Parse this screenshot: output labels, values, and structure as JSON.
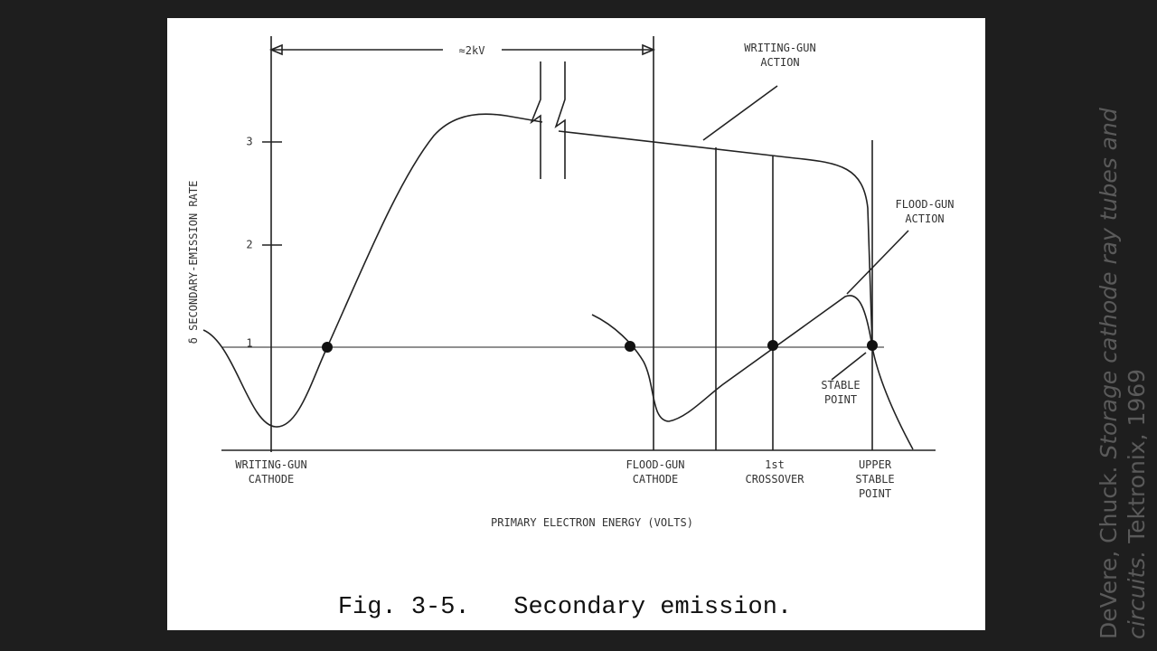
{
  "figure": {
    "y_axis_label": "δ SECONDARY-EMISSION RATE",
    "x_axis_label": "PRIMARY ELECTRON ENERGY (VOLTS)",
    "y_ticks": [
      1,
      2,
      3
    ],
    "span_label": "≈2kV",
    "writing_gun_action": [
      "WRITING-GUN",
      "ACTION"
    ],
    "flood_gun_action": [
      "FLOOD-GUN",
      "ACTION"
    ],
    "stable_point": [
      "STABLE",
      "POINT"
    ],
    "x_labels": {
      "writing_gun_cathode": [
        "WRITING-GUN",
        "CATHODE"
      ],
      "flood_gun_cathode": [
        "FLOOD-GUN",
        "CATHODE"
      ],
      "first_crossover": [
        "1st",
        "CROSSOVER"
      ],
      "upper_stable_point": [
        "UPPER",
        "STABLE",
        "POINT"
      ]
    },
    "caption": "Fig. 3-5.   Secondary emission."
  },
  "citation": {
    "author": "DeVere, Chuck.",
    "title_line_1": "Storage cathode ray tubes and",
    "title_line_2": "circuits.",
    "publisher": "Tektronix, 1969"
  }
}
